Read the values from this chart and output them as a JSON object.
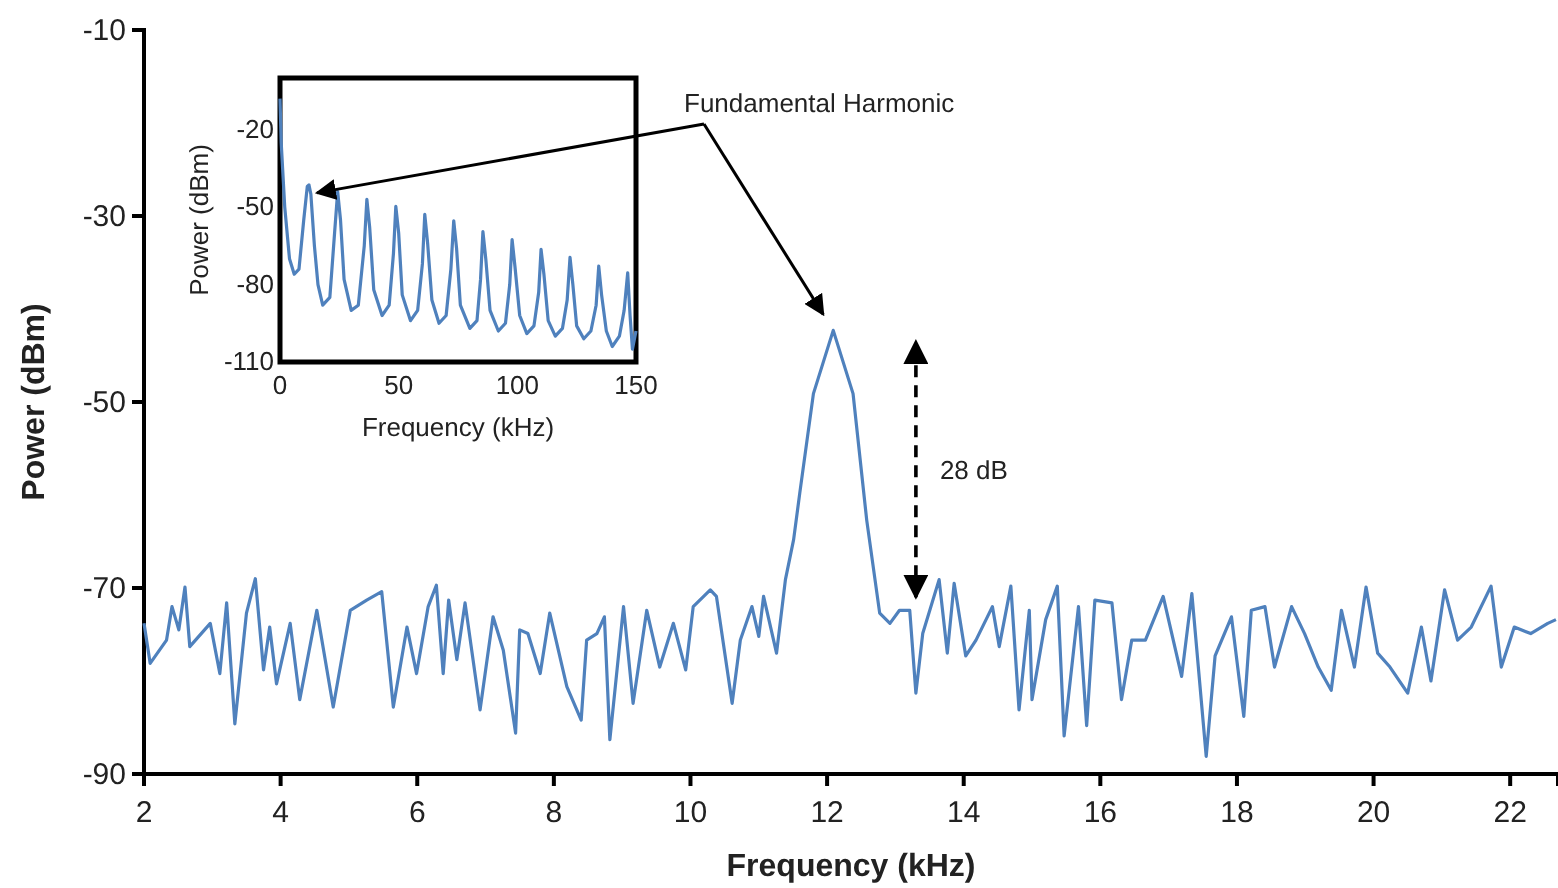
{
  "chart_data": [
    {
      "type": "line",
      "xlabel": "Frequency (kHz)",
      "ylabel": "Power (dBm)",
      "xlim": [
        2,
        22.7
      ],
      "ylim": [
        -90,
        -10
      ],
      "xticks": [
        2,
        4,
        6,
        8,
        10,
        12,
        14,
        16,
        18,
        20,
        22
      ],
      "yticks": [
        -10,
        -30,
        -50,
        -70,
        -90
      ],
      "grid": false,
      "marker": "none",
      "line_style": "solid",
      "annotations": [
        "Fundamental Harmonic",
        "28 dB"
      ],
      "series": [
        {
          "color": "#4f81bd",
          "x": [
            2.0,
            2.09,
            2.33,
            2.41,
            2.51,
            2.6,
            2.67,
            2.97,
            3.11,
            3.21,
            3.33,
            3.5,
            3.63,
            3.75,
            3.84,
            3.94,
            4.14,
            4.28,
            4.53,
            4.77,
            5.02,
            5.26,
            5.48,
            5.65,
            5.85,
            5.99,
            6.16,
            6.28,
            6.38,
            6.46,
            6.58,
            6.7,
            6.92,
            7.11,
            7.26,
            7.44,
            7.5,
            7.62,
            7.8,
            7.94,
            8.19,
            8.4,
            8.48,
            8.63,
            8.74,
            8.82,
            9.02,
            9.16,
            9.36,
            9.55,
            9.75,
            9.93,
            10.04,
            10.29,
            10.38,
            10.61,
            10.73,
            10.9,
            11.0,
            11.07,
            11.26,
            11.39,
            11.51,
            11.6,
            11.8,
            12.09,
            12.38,
            12.58,
            12.77,
            12.92,
            13.06,
            13.21,
            13.3,
            13.4,
            13.64,
            13.76,
            13.86,
            14.03,
            14.18,
            14.42,
            14.52,
            14.69,
            14.81,
            14.96,
            15.0,
            15.2,
            15.37,
            15.47,
            15.68,
            15.8,
            15.92,
            16.17,
            16.31,
            16.46,
            16.66,
            16.92,
            17.19,
            17.34,
            17.55,
            17.68,
            17.92,
            18.1,
            18.21,
            18.41,
            18.55,
            18.8,
            18.99,
            19.19,
            19.38,
            19.53,
            19.72,
            19.89,
            20.06,
            20.24,
            20.5,
            20.7,
            20.84,
            21.04,
            21.23,
            21.43,
            21.72,
            21.87,
            22.06,
            22.3,
            22.55,
            22.67
          ],
          "values": [
            -73.8,
            -78.1,
            -75.6,
            -72,
            -74.5,
            -69.9,
            -76.3,
            -73.8,
            -79.2,
            -71.6,
            -84.6,
            -72.7,
            -69,
            -78.8,
            -74.2,
            -80.3,
            -73.8,
            -82,
            -72.4,
            -82.8,
            -72.4,
            -71.3,
            -70.4,
            -82.8,
            -74.2,
            -79.2,
            -72,
            -69.7,
            -79.2,
            -71.3,
            -77.7,
            -71.6,
            -83.1,
            -73.1,
            -76.7,
            -85.6,
            -74.5,
            -74.9,
            -79.2,
            -72.7,
            -80.6,
            -84.2,
            -75.6,
            -74.9,
            -73.1,
            -86.3,
            -72,
            -82.4,
            -72.4,
            -78.5,
            -73.8,
            -78.8,
            -72,
            -70.2,
            -70.9,
            -82.4,
            -75.6,
            -72,
            -75.2,
            -70.9,
            -77,
            -69.1,
            -64.8,
            -59.8,
            -49.1,
            -42.3,
            -49.1,
            -62.7,
            -72.7,
            -73.8,
            -72.4,
            -72.4,
            -81.3,
            -74.9,
            -69.1,
            -77,
            -69.5,
            -77.3,
            -75.6,
            -72,
            -76.3,
            -69.8,
            -83.1,
            -72.4,
            -82,
            -73.4,
            -69.8,
            -85.9,
            -72,
            -84.8,
            -71.3,
            -71.6,
            -82,
            -75.6,
            -75.6,
            -70.9,
            -79.5,
            -70.6,
            -88.1,
            -77.3,
            -73.1,
            -83.8,
            -72.4,
            -72,
            -78.5,
            -72,
            -74.9,
            -78.5,
            -81,
            -72.4,
            -78.5,
            -69.9,
            -77,
            -78.5,
            -81.3,
            -74.2,
            -80,
            -70.2,
            -75.6,
            -74.2,
            -69.8,
            -78.5,
            -74.2,
            -74.9,
            -73.8,
            -73.4
          ]
        }
      ]
    },
    {
      "type": "line",
      "xlabel": "Frequency (kHz)",
      "ylabel": "Power (dBm)",
      "xlim": [
        0,
        150
      ],
      "ylim": [
        -110,
        0
      ],
      "xticks": [
        0,
        50,
        100,
        150
      ],
      "yticks": [
        -20,
        -50,
        -80,
        -110
      ],
      "grid": false,
      "marker": "none",
      "line_style": "solid",
      "series": [
        {
          "color": "#4f81bd",
          "x": [
            0,
            0.5,
            2,
            4,
            6,
            8,
            10,
            11.5,
            12.2,
            13,
            14.5,
            16,
            18,
            21,
            23,
            24.3,
            25.5,
            27,
            30,
            33,
            35.5,
            36.6,
            37.8,
            39.5,
            43,
            46,
            47.8,
            48.8,
            50,
            51.5,
            55,
            58,
            60,
            61,
            62.2,
            64,
            67,
            70,
            72,
            73.2,
            74.4,
            76,
            80,
            83,
            84.5,
            85.5,
            86.7,
            88.5,
            92,
            95,
            96.8,
            97.8,
            99,
            101,
            104,
            107,
            109,
            110,
            111.2,
            113,
            116,
            119,
            121,
            122.2,
            123.4,
            125,
            128,
            131,
            133.2,
            134.3,
            135.5,
            137.5,
            140,
            143,
            145,
            146.5,
            147.5,
            148.5,
            150
          ],
          "values": [
            -8,
            -25,
            -50,
            -70,
            -76,
            -74,
            -55,
            -42,
            -41.4,
            -45,
            -65,
            -80,
            -88,
            -85,
            -60,
            -44,
            -55,
            -78,
            -90,
            -88,
            -65,
            -47,
            -58,
            -82,
            -92,
            -88,
            -68,
            -49.7,
            -60,
            -84,
            -94,
            -90,
            -72,
            -52.8,
            -64,
            -86,
            -95,
            -92,
            -74,
            -55.3,
            -66,
            -88,
            -97,
            -94,
            -78,
            -59.5,
            -70,
            -90,
            -98,
            -95,
            -80,
            -62.6,
            -73,
            -92,
            -99,
            -96,
            -83,
            -66.4,
            -76,
            -94,
            -100,
            -97,
            -86,
            -69.5,
            -80,
            -96,
            -101,
            -98,
            -88,
            -72.9,
            -84,
            -98,
            -104,
            -100,
            -90,
            -75.5,
            -92,
            -105,
            -98
          ]
        }
      ]
    }
  ]
}
